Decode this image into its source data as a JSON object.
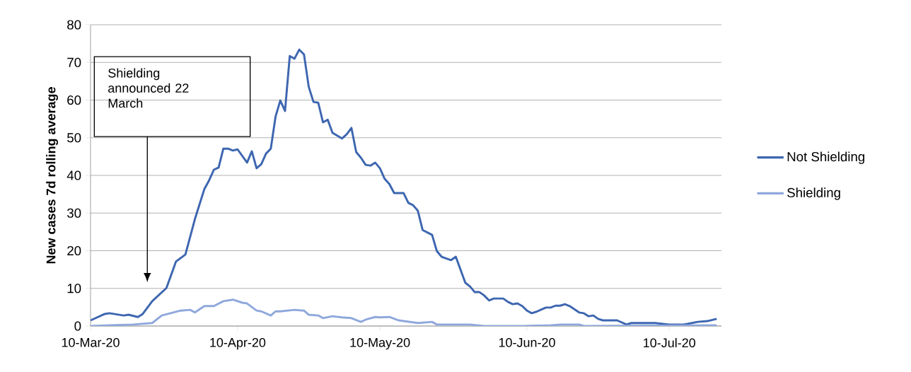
{
  "chart_data": {
    "type": "line",
    "ylabel": "New cases 7d rolling average",
    "xlim": [
      "2020-03-10",
      "2020-07-21"
    ],
    "ylim": [
      0,
      80
    ],
    "yticks": [
      0,
      10,
      20,
      30,
      40,
      50,
      60,
      70,
      80
    ],
    "xticks": [
      {
        "value": "2020-03-10",
        "label": "10-Mar-20"
      },
      {
        "value": "2020-04-10",
        "label": "10-Apr-20"
      },
      {
        "value": "2020-05-10",
        "label": "10-May-20"
      },
      {
        "value": "2020-06-10",
        "label": "10-Jun-20"
      },
      {
        "value": "2020-07-10",
        "label": "10-Jul-20"
      }
    ],
    "grid": "y",
    "legend": "right",
    "marker": "none",
    "line_style": "solid",
    "annotations": [
      "Shielding announced 22 March"
    ],
    "series": [
      {
        "name": "Not Shielding",
        "color": "#3d66b0",
        "x": [
          "2020-03-10",
          "2020-03-13",
          "2020-03-14",
          "2020-03-17",
          "2020-03-18",
          "2020-03-20",
          "2020-03-21",
          "2020-03-23",
          "2020-03-26",
          "2020-03-28",
          "2020-03-30",
          "2020-04-01",
          "2020-04-03",
          "2020-04-04",
          "2020-04-05",
          "2020-04-06",
          "2020-04-07",
          "2020-04-08",
          "2020-04-09",
          "2020-04-10",
          "2020-04-12",
          "2020-04-13",
          "2020-04-14",
          "2020-04-15",
          "2020-04-16",
          "2020-04-17",
          "2020-04-18",
          "2020-04-19",
          "2020-04-20",
          "2020-04-21",
          "2020-04-22",
          "2020-04-23",
          "2020-04-24",
          "2020-04-25",
          "2020-04-26",
          "2020-04-27",
          "2020-04-28",
          "2020-04-29",
          "2020-04-30",
          "2020-05-02",
          "2020-05-03",
          "2020-05-04",
          "2020-05-05",
          "2020-05-06",
          "2020-05-07",
          "2020-05-08",
          "2020-05-09",
          "2020-05-10",
          "2020-05-11",
          "2020-05-12",
          "2020-05-13",
          "2020-05-15",
          "2020-05-16",
          "2020-05-17",
          "2020-05-18",
          "2020-05-19",
          "2020-05-21",
          "2020-05-22",
          "2020-05-23",
          "2020-05-25",
          "2020-05-26",
          "2020-05-28",
          "2020-05-29",
          "2020-05-30",
          "2020-05-31",
          "2020-06-01",
          "2020-06-02",
          "2020-06-03",
          "2020-06-05",
          "2020-06-06",
          "2020-06-07",
          "2020-06-08",
          "2020-06-09",
          "2020-06-10",
          "2020-06-11",
          "2020-06-12",
          "2020-06-14",
          "2020-06-15",
          "2020-06-16",
          "2020-06-17",
          "2020-06-18",
          "2020-06-19",
          "2020-06-21",
          "2020-06-22",
          "2020-06-23",
          "2020-06-24",
          "2020-06-25",
          "2020-06-26",
          "2020-06-29",
          "2020-07-01",
          "2020-07-02",
          "2020-07-07",
          "2020-07-10",
          "2020-07-13",
          "2020-07-14",
          "2020-07-16",
          "2020-07-18",
          "2020-07-20"
        ],
        "values": [
          1.5,
          3.2,
          3.4,
          2.8,
          3.0,
          2.4,
          3.2,
          6.6,
          10.1,
          17.1,
          19.0,
          28.4,
          36.4,
          38.7,
          41.5,
          42.1,
          47.1,
          47.1,
          46.6,
          46.9,
          43.4,
          46.4,
          41.9,
          43.0,
          45.8,
          47.1,
          55.6,
          59.9,
          57.1,
          71.7,
          71.0,
          73.4,
          72.1,
          63.5,
          59.5,
          59.3,
          54.1,
          54.8,
          51.3,
          49.8,
          50.9,
          52.6,
          46.2,
          44.7,
          42.8,
          42.6,
          43.4,
          41.9,
          39.1,
          37.7,
          35.3,
          35.3,
          32.7,
          32.1,
          30.6,
          25.5,
          24.2,
          19.9,
          18.4,
          17.5,
          18.4,
          11.5,
          10.5,
          9.0,
          9.0,
          8.1,
          6.8,
          7.3,
          7.3,
          6.4,
          5.8,
          6.0,
          5.3,
          4.1,
          3.4,
          3.8,
          4.9,
          4.9,
          5.4,
          5.4,
          5.8,
          5.3,
          3.6,
          3.4,
          2.6,
          2.8,
          1.9,
          1.5,
          1.5,
          0.4,
          0.8,
          0.8,
          0.4,
          0.4,
          0.6,
          1.1,
          1.3,
          1.9
        ]
      },
      {
        "name": "Shielding",
        "color": "#8fa8dc",
        "x": [
          "2020-03-10",
          "2020-03-14",
          "2020-03-19",
          "2020-03-23",
          "2020-03-25",
          "2020-03-29",
          "2020-03-31",
          "2020-04-01",
          "2020-04-03",
          "2020-04-05",
          "2020-04-07",
          "2020-04-09",
          "2020-04-11",
          "2020-04-12",
          "2020-04-14",
          "2020-04-15",
          "2020-04-17",
          "2020-04-18",
          "2020-04-19",
          "2020-04-22",
          "2020-04-24",
          "2020-04-25",
          "2020-04-27",
          "2020-04-28",
          "2020-04-30",
          "2020-05-02",
          "2020-05-04",
          "2020-05-06",
          "2020-05-07",
          "2020-05-09",
          "2020-05-10",
          "2020-05-12",
          "2020-05-14",
          "2020-05-18",
          "2020-05-21",
          "2020-05-22",
          "2020-05-25",
          "2020-05-29",
          "2020-06-01",
          "2020-06-09",
          "2020-06-15",
          "2020-06-17",
          "2020-06-21",
          "2020-06-22",
          "2020-07-20"
        ],
        "values": [
          0,
          0.2,
          0.4,
          0.8,
          2.8,
          4.1,
          4.3,
          3.6,
          5.3,
          5.3,
          6.6,
          7.0,
          6.2,
          6.0,
          4.1,
          3.9,
          2.8,
          3.9,
          3.9,
          4.3,
          4.1,
          3.0,
          2.8,
          2.1,
          2.6,
          2.3,
          2.1,
          1.1,
          1.7,
          2.4,
          2.3,
          2.4,
          1.5,
          0.8,
          1.1,
          0.4,
          0.4,
          0.4,
          0,
          0,
          0.2,
          0.4,
          0.4,
          0,
          0.2
        ]
      }
    ]
  }
}
